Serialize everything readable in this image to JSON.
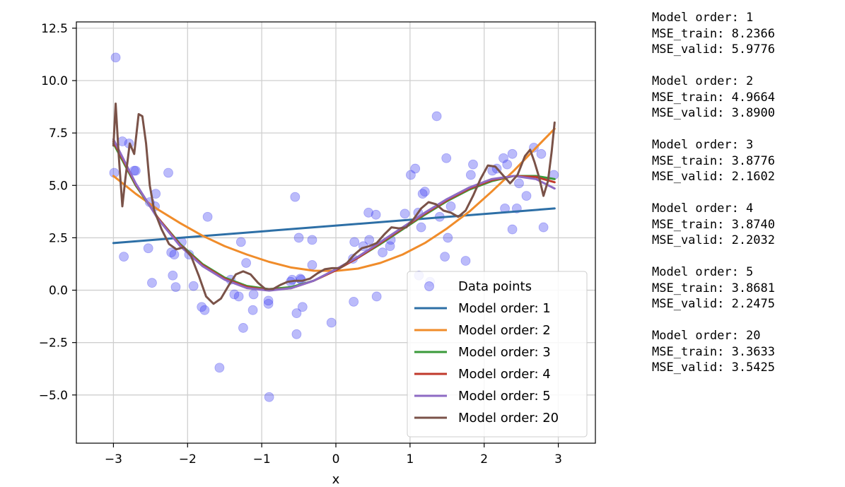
{
  "chart_data": {
    "type": "scatter",
    "title": "",
    "xlabel": "x",
    "ylabel": "",
    "xlim": [
      -3.5,
      3.5
    ],
    "ylim": [
      -7.3,
      12.8
    ],
    "xticks": [
      -3,
      -2,
      -1,
      0,
      1,
      2,
      3
    ],
    "xtick_labels": [
      "−3",
      "−2",
      "−1",
      "0",
      "1",
      "2",
      "3"
    ],
    "yticks": [
      -5.0,
      -2.5,
      0.0,
      2.5,
      5.0,
      7.5,
      10.0,
      12.5
    ],
    "ytick_labels": [
      "−5.0",
      "−2.5",
      "0.0",
      "2.5",
      "5.0",
      "7.5",
      "10.0",
      "12.5"
    ],
    "grid": true,
    "legend_position": "lower-right",
    "legend_title": "Data points",
    "scatter_color": "#3b3bf0",
    "points": [
      [
        -2.97,
        11.1
      ],
      [
        -2.99,
        5.6
      ],
      [
        -2.88,
        7.1
      ],
      [
        -2.79,
        7.0
      ],
      [
        -2.72,
        5.7
      ],
      [
        -2.7,
        5.7
      ],
      [
        -2.86,
        1.6
      ],
      [
        -2.51,
        4.2
      ],
      [
        -2.48,
        0.35
      ],
      [
        -2.44,
        4.0
      ],
      [
        -2.43,
        4.6
      ],
      [
        -2.53,
        2.0
      ],
      [
        -2.26,
        5.6
      ],
      [
        -2.22,
        1.8
      ],
      [
        -2.2,
        0.7
      ],
      [
        -2.18,
        1.7
      ],
      [
        -2.16,
        0.15
      ],
      [
        -2.08,
        2.3
      ],
      [
        -1.98,
        1.7
      ],
      [
        -1.92,
        0.2
      ],
      [
        -1.81,
        -0.8
      ],
      [
        -1.77,
        -0.95
      ],
      [
        -1.73,
        3.5
      ],
      [
        -1.57,
        -3.7
      ],
      [
        -1.42,
        0.5
      ],
      [
        -1.37,
        -0.2
      ],
      [
        -1.31,
        -0.3
      ],
      [
        -1.28,
        2.3
      ],
      [
        -1.25,
        -1.8
      ],
      [
        -1.21,
        1.3
      ],
      [
        -1.11,
        -0.2
      ],
      [
        -1.12,
        -0.95
      ],
      [
        -0.91,
        -0.65
      ],
      [
        -0.91,
        -0.5
      ],
      [
        -0.9,
        -5.1
      ],
      [
        -0.61,
        0.4
      ],
      [
        -0.59,
        0.5
      ],
      [
        -0.55,
        4.45
      ],
      [
        -0.53,
        -1.1
      ],
      [
        -0.53,
        -2.1
      ],
      [
        -0.5,
        2.5
      ],
      [
        -0.48,
        0.55
      ],
      [
        -0.47,
        0.5
      ],
      [
        -0.45,
        -0.8
      ],
      [
        -0.32,
        2.4
      ],
      [
        -0.32,
        1.2
      ],
      [
        -0.06,
        -1.55
      ],
      [
        0.23,
        1.5
      ],
      [
        0.25,
        2.3
      ],
      [
        0.24,
        -0.55
      ],
      [
        0.37,
        2.1
      ],
      [
        0.44,
        3.7
      ],
      [
        0.45,
        2.4
      ],
      [
        0.54,
        3.6
      ],
      [
        0.55,
        -0.3
      ],
      [
        0.63,
        1.8
      ],
      [
        0.73,
        2.1
      ],
      [
        0.74,
        2.4
      ],
      [
        0.93,
        3.65
      ],
      [
        1.01,
        5.5
      ],
      [
        1.07,
        5.8
      ],
      [
        1.11,
        3.7
      ],
      [
        1.15,
        3.0
      ],
      [
        1.17,
        4.6
      ],
      [
        1.2,
        4.7
      ],
      [
        1.27,
        0.4
      ],
      [
        1.36,
        8.3
      ],
      [
        1.4,
        3.5
      ],
      [
        1.47,
        1.6
      ],
      [
        1.49,
        6.3
      ],
      [
        1.51,
        2.5
      ],
      [
        1.55,
        4.0
      ],
      [
        1.75,
        1.4
      ],
      [
        1.82,
        5.5
      ],
      [
        1.85,
        6.0
      ],
      [
        2.11,
        5.7
      ],
      [
        2.17,
        5.8
      ],
      [
        2.26,
        6.3
      ],
      [
        2.28,
        3.9
      ],
      [
        2.31,
        6.0
      ],
      [
        2.38,
        6.5
      ],
      [
        2.38,
        2.9
      ],
      [
        2.44,
        3.9
      ],
      [
        2.47,
        5.1
      ],
      [
        2.57,
        4.5
      ],
      [
        2.67,
        6.8
      ],
      [
        2.77,
        6.5
      ],
      [
        2.8,
        3.0
      ],
      [
        2.94,
        5.5
      ],
      [
        1.12,
        0.7
      ]
    ],
    "series": [
      {
        "name": "Model order: 1",
        "color": "#2d6fa6",
        "x": [
          -3.0,
          2.95
        ],
        "y": [
          2.25,
          3.9
        ]
      },
      {
        "name": "Model order: 2",
        "color": "#f08c2a",
        "x": [
          -3.0,
          -2.7,
          -2.4,
          -2.1,
          -1.8,
          -1.5,
          -1.2,
          -0.9,
          -0.6,
          -0.3,
          0.0,
          0.3,
          0.6,
          0.9,
          1.2,
          1.5,
          1.8,
          2.1,
          2.4,
          2.7,
          2.95
        ],
        "y": [
          5.45,
          4.6,
          3.85,
          3.2,
          2.6,
          2.1,
          1.7,
          1.35,
          1.08,
          0.93,
          0.92,
          1.03,
          1.3,
          1.7,
          2.25,
          2.95,
          3.75,
          4.7,
          5.7,
          6.8,
          7.7
        ]
      },
      {
        "name": "Model order: 3",
        "color": "#3a9a3a",
        "x": [
          -3.0,
          -2.7,
          -2.4,
          -2.1,
          -1.8,
          -1.5,
          -1.2,
          -0.9,
          -0.6,
          -0.3,
          0.0,
          0.3,
          0.6,
          0.9,
          1.2,
          1.5,
          1.8,
          2.1,
          2.4,
          2.7,
          2.95
        ],
        "y": [
          7.0,
          5.0,
          3.45,
          2.2,
          1.25,
          0.6,
          0.2,
          0.05,
          0.15,
          0.45,
          0.95,
          1.55,
          2.2,
          2.9,
          3.6,
          4.25,
          4.8,
          5.2,
          5.45,
          5.45,
          5.3
        ]
      },
      {
        "name": "Model order: 4",
        "color": "#c0392b",
        "x": [
          -3.0,
          -2.7,
          -2.4,
          -2.1,
          -1.8,
          -1.5,
          -1.2,
          -0.9,
          -0.6,
          -0.3,
          0.0,
          0.3,
          0.6,
          0.9,
          1.2,
          1.5,
          1.8,
          2.1,
          2.4,
          2.7,
          2.95
        ],
        "y": [
          7.1,
          5.05,
          3.45,
          2.15,
          1.2,
          0.55,
          0.15,
          0.0,
          0.1,
          0.45,
          0.95,
          1.55,
          2.25,
          2.95,
          3.65,
          4.3,
          4.85,
          5.25,
          5.45,
          5.4,
          5.15
        ]
      },
      {
        "name": "Model order: 5",
        "color": "#8e6bc4",
        "x": [
          -3.0,
          -2.7,
          -2.4,
          -2.1,
          -1.8,
          -1.5,
          -1.2,
          -0.9,
          -0.6,
          -0.3,
          0.0,
          0.3,
          0.6,
          0.9,
          1.2,
          1.5,
          1.8,
          2.1,
          2.4,
          2.7,
          2.95
        ],
        "y": [
          7.2,
          5.1,
          3.4,
          2.1,
          1.15,
          0.5,
          0.1,
          -0.02,
          0.1,
          0.45,
          1.0,
          1.6,
          2.3,
          3.0,
          3.7,
          4.35,
          4.9,
          5.3,
          5.45,
          5.3,
          4.85
        ]
      },
      {
        "name": "Model order: 20",
        "color": "#7a5248",
        "x": [
          -3.0,
          -2.97,
          -2.93,
          -2.88,
          -2.84,
          -2.78,
          -2.72,
          -2.66,
          -2.61,
          -2.56,
          -2.51,
          -2.45,
          -2.35,
          -2.25,
          -2.15,
          -2.05,
          -1.95,
          -1.85,
          -1.75,
          -1.65,
          -1.55,
          -1.45,
          -1.35,
          -1.25,
          -1.15,
          -1.05,
          -0.95,
          -0.85,
          -0.75,
          -0.65,
          -0.55,
          -0.45,
          -0.35,
          -0.25,
          -0.15,
          -0.05,
          0.05,
          0.15,
          0.25,
          0.35,
          0.45,
          0.55,
          0.65,
          0.75,
          0.85,
          0.95,
          1.05,
          1.15,
          1.25,
          1.35,
          1.45,
          1.55,
          1.65,
          1.75,
          1.85,
          1.95,
          2.05,
          2.15,
          2.25,
          2.35,
          2.45,
          2.55,
          2.62,
          2.68,
          2.74,
          2.8,
          2.86,
          2.91,
          2.95
        ],
        "y": [
          6.9,
          8.9,
          6.5,
          4.0,
          5.3,
          7.0,
          6.5,
          8.4,
          8.3,
          7.0,
          5.0,
          3.8,
          2.9,
          2.2,
          1.95,
          2.05,
          1.6,
          0.7,
          -0.3,
          -0.65,
          -0.4,
          0.2,
          0.75,
          0.9,
          0.75,
          0.35,
          0.05,
          0.05,
          0.25,
          0.4,
          0.45,
          0.45,
          0.55,
          0.8,
          1.0,
          1.05,
          1.05,
          1.3,
          1.7,
          2.0,
          2.1,
          2.25,
          2.65,
          3.0,
          2.95,
          3.0,
          3.4,
          3.9,
          4.2,
          4.1,
          3.8,
          3.7,
          3.5,
          3.8,
          4.5,
          5.3,
          5.95,
          5.9,
          5.5,
          5.1,
          5.5,
          6.4,
          6.7,
          6.1,
          5.4,
          4.5,
          5.2,
          6.6,
          8.0
        ]
      }
    ]
  },
  "results": [
    {
      "order": "Model order: 1",
      "train": "MSE_train: 8.2366",
      "valid": "MSE_valid: 5.9776"
    },
    {
      "order": "Model order: 2",
      "train": "MSE_train: 4.9664",
      "valid": "MSE_valid: 3.8900"
    },
    {
      "order": "Model order: 3",
      "train": "MSE_train: 3.8776",
      "valid": "MSE_valid: 2.1602"
    },
    {
      "order": "Model order: 4",
      "train": "MSE_train: 3.8740",
      "valid": "MSE_valid: 2.2032"
    },
    {
      "order": "Model order: 5",
      "train": "MSE_train: 3.8681",
      "valid": "MSE_valid: 2.2475"
    },
    {
      "order": "Model order: 20",
      "train": "MSE_train: 3.3633",
      "valid": "MSE_valid: 3.5425"
    }
  ]
}
